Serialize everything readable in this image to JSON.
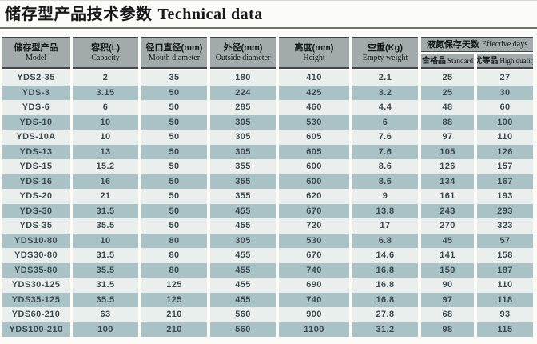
{
  "title": {
    "zh": "储存型产品技术参数",
    "en": "Technical data"
  },
  "table": {
    "columns": [
      {
        "zh": "储存型产品",
        "en": "Model"
      },
      {
        "zh": "容积(L)",
        "en": "Capacity"
      },
      {
        "zh": "径口直径(mm)",
        "en": "Mouth diameter"
      },
      {
        "zh": "外径(mm)",
        "en": "Outside diameter"
      },
      {
        "zh": "高度(mm)",
        "en": "Height"
      },
      {
        "zh": "空重(Kg)",
        "en": "Empty weight"
      }
    ],
    "group_header": {
      "zh": "液氮保存天数",
      "en": "Effective days"
    },
    "sub_columns": [
      {
        "zh": "合格品",
        "en": "Standard"
      },
      {
        "zh": "优等品",
        "en": "High quality"
      }
    ],
    "rows": [
      [
        "YDS2-35",
        "2",
        "35",
        "180",
        "410",
        "2.1",
        "25",
        "27"
      ],
      [
        "YDS-3",
        "3.15",
        "50",
        "224",
        "425",
        "3.2",
        "25",
        "30"
      ],
      [
        "YDS-6",
        "6",
        "50",
        "285",
        "460",
        "4.4",
        "48",
        "60"
      ],
      [
        "YDS-10",
        "10",
        "50",
        "305",
        "530",
        "6",
        "88",
        "100"
      ],
      [
        "YDS-10A",
        "10",
        "50",
        "305",
        "605",
        "7.6",
        "97",
        "110"
      ],
      [
        "YDS-13",
        "13",
        "50",
        "305",
        "605",
        "7.6",
        "105",
        "126"
      ],
      [
        "YDS-15",
        "15.2",
        "50",
        "355",
        "600",
        "8.6",
        "126",
        "157"
      ],
      [
        "YDS-16",
        "16",
        "50",
        "355",
        "600",
        "8.6",
        "134",
        "167"
      ],
      [
        "YDS-20",
        "21",
        "50",
        "355",
        "620",
        "9",
        "161",
        "193"
      ],
      [
        "YDS-30",
        "31.5",
        "50",
        "455",
        "670",
        "13.8",
        "243",
        "293"
      ],
      [
        "YDS-35",
        "35.5",
        "50",
        "455",
        "720",
        "17",
        "270",
        "323"
      ],
      [
        "YDS10-80",
        "10",
        "80",
        "305",
        "530",
        "6.8",
        "45",
        "57"
      ],
      [
        "YDS30-80",
        "31.5",
        "80",
        "455",
        "670",
        "14.6",
        "141",
        "158"
      ],
      [
        "YDS35-80",
        "35.5",
        "80",
        "455",
        "740",
        "16.8",
        "150",
        "187"
      ],
      [
        "YDS30-125",
        "31.5",
        "125",
        "455",
        "690",
        "16.8",
        "90",
        "110"
      ],
      [
        "YDS35-125",
        "35.5",
        "125",
        "455",
        "740",
        "16.8",
        "97",
        "118"
      ],
      [
        "YDS60-210",
        "63",
        "210",
        "560",
        "900",
        "27.8",
        "68",
        "93"
      ],
      [
        "YDS100-210",
        "100",
        "210",
        "560",
        "1100",
        "31.2",
        "98",
        "115"
      ]
    ]
  },
  "colors": {
    "header_bg": "#a2aaac",
    "row_light": "#eaefed",
    "row_teal": "#a9c2c5",
    "border_dark": "#3f4548",
    "text": "#3d4950"
  }
}
